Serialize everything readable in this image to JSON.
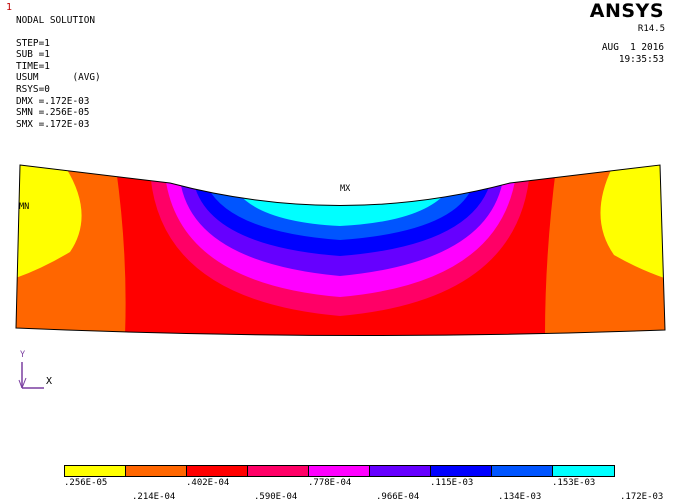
{
  "window_number": "1",
  "info": {
    "title": "NODAL SOLUTION",
    "step": "STEP=1",
    "sub": "SUB =1",
    "time": "TIME=1",
    "result": "USUM      (AVG)",
    "rsys": "RSYS=0",
    "dmx": "DMX =.172E-03",
    "smn": "SMN =.256E-05",
    "smx": "SMX =.172E-03"
  },
  "brand": "ANSYS",
  "release": "R14.5",
  "date": "AUG  1 2016",
  "time": "19:35:53",
  "markers": {
    "max": "MX",
    "min": "MN"
  },
  "triad": {
    "y": "Y",
    "x": "X"
  },
  "legend": {
    "colors": [
      "#ffff00",
      "#ff6600",
      "#ff0000",
      "#ff0066",
      "#ff00ff",
      "#6600ff",
      "#0000ff",
      "#0055ff",
      "#00ffff"
    ],
    "values_top": [
      ".256E-05",
      ".402E-04",
      ".778E-04",
      ".115E-03",
      ".153E-03"
    ],
    "values_bottom": [
      ".214E-04",
      ".590E-04",
      ".966E-04",
      ".134E-03",
      ".172E-03"
    ]
  }
}
